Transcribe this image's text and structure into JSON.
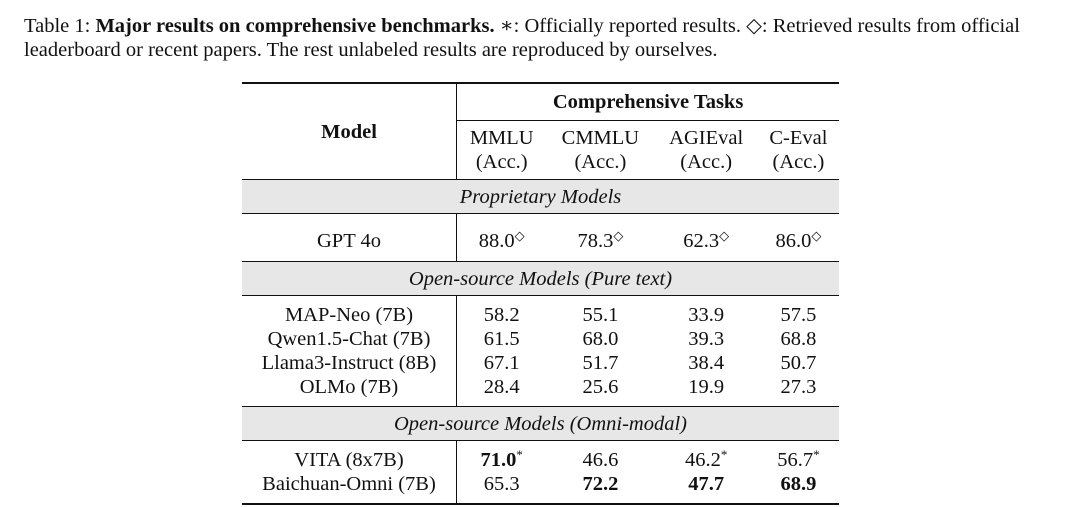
{
  "caption": {
    "label": "Table 1:",
    "title": "Major results on comprehensive benchmarks.",
    "text": "∗: Officially reported results. ◇: Retrieved results from official leaderboard or recent papers. The rest unlabeled results are reproduced by ourselves."
  },
  "table": {
    "model_header": "Model",
    "group_header": "Comprehensive Tasks",
    "columns": [
      {
        "name": "MMLU",
        "metric": "(Acc.)"
      },
      {
        "name": "CMMLU",
        "metric": "(Acc.)"
      },
      {
        "name": "AGIEval",
        "metric": "(Acc.)"
      },
      {
        "name": "C-Eval",
        "metric": "(Acc.)"
      }
    ],
    "sections": [
      {
        "title": "Proprietary Models",
        "rows": [
          {
            "model": "GPT 4o",
            "values": [
              "88.0",
              "78.3",
              "62.3",
              "86.0"
            ],
            "marks": [
              "◇",
              "◇",
              "◇",
              "◇"
            ],
            "bold": [
              false,
              false,
              false,
              false
            ]
          }
        ]
      },
      {
        "title": "Open-source Models (Pure text)",
        "rows": [
          {
            "model": "MAP-Neo (7B)",
            "values": [
              "58.2",
              "55.1",
              "33.9",
              "57.5"
            ],
            "marks": [
              "",
              "",
              "",
              ""
            ],
            "bold": [
              false,
              false,
              false,
              false
            ]
          },
          {
            "model": "Qwen1.5-Chat (7B)",
            "values": [
              "61.5",
              "68.0",
              "39.3",
              "68.8"
            ],
            "marks": [
              "",
              "",
              "",
              ""
            ],
            "bold": [
              false,
              false,
              false,
              false
            ]
          },
          {
            "model": "Llama3-Instruct (8B)",
            "values": [
              "67.1",
              "51.7",
              "38.4",
              "50.7"
            ],
            "marks": [
              "",
              "",
              "",
              ""
            ],
            "bold": [
              false,
              false,
              false,
              false
            ]
          },
          {
            "model": "OLMo (7B)",
            "values": [
              "28.4",
              "25.6",
              "19.9",
              "27.3"
            ],
            "marks": [
              "",
              "",
              "",
              ""
            ],
            "bold": [
              false,
              false,
              false,
              false
            ]
          }
        ]
      },
      {
        "title": "Open-source Models (Omni-modal)",
        "rows": [
          {
            "model": "VITA (8x7B)",
            "values": [
              "71.0",
              "46.6",
              "46.2",
              "56.7"
            ],
            "marks": [
              "*",
              "",
              "*",
              "*"
            ],
            "bold": [
              true,
              false,
              false,
              false
            ]
          },
          {
            "model": "Baichuan-Omni (7B)",
            "values": [
              "65.3",
              "72.2",
              "47.7",
              "68.9"
            ],
            "marks": [
              "",
              "",
              "",
              ""
            ],
            "bold": [
              false,
              true,
              true,
              true
            ]
          }
        ]
      }
    ]
  }
}
